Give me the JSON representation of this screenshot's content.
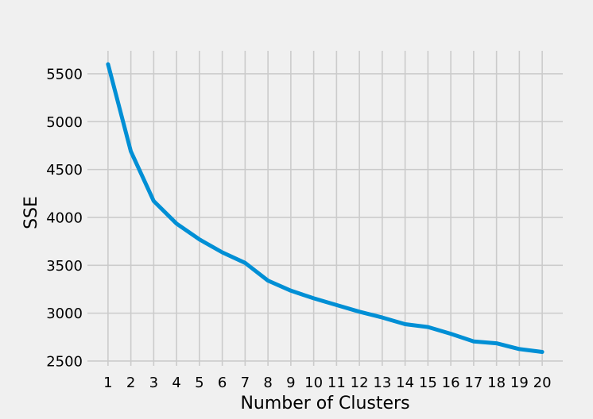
{
  "chart_data": {
    "type": "line",
    "title": "",
    "xlabel": "Number of Clusters",
    "ylabel": "SSE",
    "x": [
      1,
      2,
      3,
      4,
      5,
      6,
      7,
      8,
      9,
      10,
      11,
      12,
      13,
      14,
      15,
      16,
      17,
      18,
      19,
      20
    ],
    "series": [
      {
        "color": "#008fd5",
        "values": [
          5600,
          4690,
          4170,
          3935,
          3770,
          3635,
          3525,
          3340,
          3235,
          3155,
          3085,
          3015,
          2955,
          2885,
          2855,
          2785,
          2705,
          2685,
          2625,
          2595
        ]
      }
    ],
    "xticks": [
      "1",
      "2",
      "3",
      "4",
      "5",
      "6",
      "7",
      "8",
      "9",
      "10",
      "11",
      "12",
      "13",
      "14",
      "15",
      "16",
      "17",
      "18",
      "19",
      "20"
    ],
    "yticks": [
      2500,
      3000,
      3500,
      4000,
      4500,
      5000,
      5500
    ],
    "xlim": [
      0.1,
      20.9
    ],
    "ylim": [
      2450,
      5740
    ],
    "grid": true,
    "legend": "none",
    "colors": {
      "background": "#f0f0f0",
      "grid": "#cbcbcb",
      "text": "#000000"
    }
  }
}
